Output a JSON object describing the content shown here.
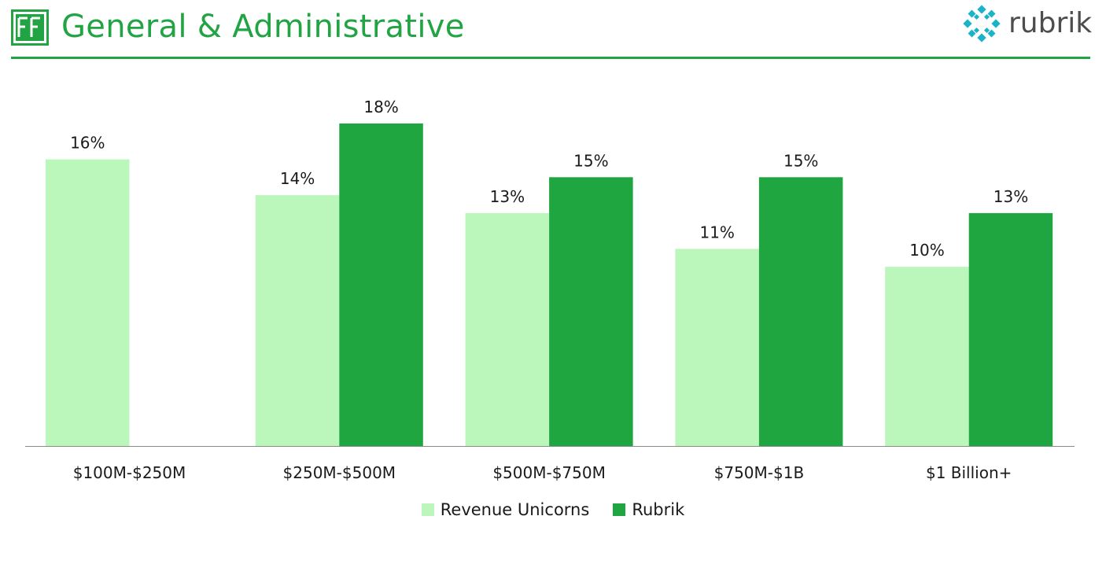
{
  "header": {
    "title": "General & Administrative",
    "logo_text": "FF",
    "brand_name": "rubrik",
    "brand_icon": "rubrik-logo-icon"
  },
  "colors": {
    "accent": "#22a344",
    "series_light": "#bbf7bb",
    "series_dark": "#1fa640",
    "axis": "#8a8a8a",
    "brand_teal": "#1ab3c8"
  },
  "chart_data": {
    "type": "bar",
    "title": "",
    "xlabel": "",
    "ylabel": "",
    "ylim": [
      0,
      20
    ],
    "categories": [
      "$100M-$250M",
      "$250M-$500M",
      "$500M-$750M",
      "$750M-$1B",
      "$1 Billion+"
    ],
    "series": [
      {
        "name": "Revenue Unicorns",
        "values": [
          16,
          14,
          13,
          11,
          10
        ],
        "labels": [
          "16%",
          "14%",
          "13%",
          "11%",
          "10%"
        ]
      },
      {
        "name": "Rubrik",
        "values": [
          null,
          18,
          15,
          15,
          13
        ],
        "labels": [
          null,
          "18%",
          "15%",
          "15%",
          "13%"
        ]
      }
    ],
    "legend_position": "bottom",
    "grid": false
  }
}
